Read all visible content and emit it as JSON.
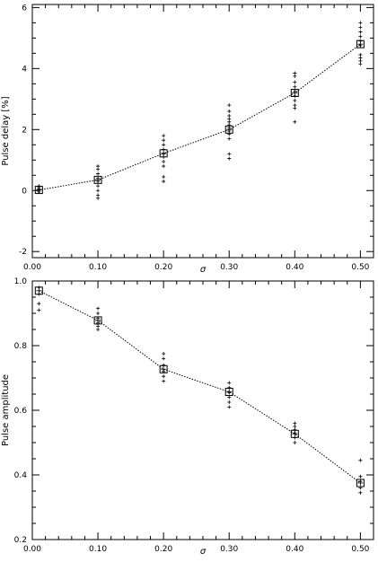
{
  "chart_data": [
    {
      "type": "scatter",
      "xlabel": "σ",
      "ylabel": "Pulse delay [%]",
      "xlim": [
        0.0,
        0.52
      ],
      "ylim": [
        -2.2,
        6.1
      ],
      "xticks": [
        0.0,
        0.1,
        0.2,
        0.3,
        0.4,
        0.5
      ],
      "xtick_labels": [
        "0.00",
        "0.10",
        "0.20",
        "0.30",
        "0.40",
        "0.50"
      ],
      "yticks": [
        -2,
        0,
        2,
        4,
        6
      ],
      "ytick_labels": [
        "-2",
        "0",
        "2",
        "4",
        "6"
      ],
      "grid": false,
      "series": [
        {
          "marker": "square",
          "line": "dotted",
          "x": [
            0.01,
            0.1,
            0.2,
            0.3,
            0.4,
            0.5
          ],
          "y": [
            0.02,
            0.35,
            1.22,
            2.0,
            3.2,
            4.8
          ]
        },
        {
          "marker": "plus",
          "x": [
            0.01,
            0.01,
            0.01,
            0.01,
            0.01,
            0.1,
            0.1,
            0.1,
            0.1,
            0.1,
            0.1,
            0.1,
            0.1,
            0.1,
            0.2,
            0.2,
            0.2,
            0.2,
            0.2,
            0.2,
            0.2,
            0.2,
            0.2,
            0.2,
            0.3,
            0.3,
            0.3,
            0.3,
            0.3,
            0.3,
            0.3,
            0.3,
            0.3,
            0.3,
            0.3,
            0.3,
            0.4,
            0.4,
            0.4,
            0.4,
            0.4,
            0.4,
            0.4,
            0.4,
            0.4,
            0.4,
            0.5,
            0.5,
            0.5,
            0.5,
            0.5,
            0.5,
            0.5,
            0.5,
            0.5,
            0.5
          ],
          "y": [
            -0.05,
            0.0,
            0.05,
            0.1,
            0.15,
            0.8,
            0.7,
            0.55,
            0.4,
            0.3,
            0.15,
            0.0,
            -0.15,
            -0.25,
            1.8,
            1.65,
            1.5,
            1.35,
            1.2,
            1.1,
            0.95,
            0.8,
            0.45,
            0.3,
            2.8,
            2.6,
            2.45,
            2.35,
            2.25,
            2.15,
            2.05,
            1.95,
            1.85,
            1.7,
            1.2,
            1.05,
            3.85,
            3.75,
            3.55,
            3.4,
            3.25,
            3.1,
            2.95,
            2.8,
            2.7,
            2.25,
            5.5,
            5.35,
            5.2,
            5.05,
            4.9,
            4.75,
            4.45,
            4.35,
            4.25,
            4.15
          ]
        }
      ]
    },
    {
      "type": "scatter",
      "xlabel": "σ",
      "ylabel": "Pulse amplitude",
      "xlim": [
        0.0,
        0.52
      ],
      "ylim": [
        0.2,
        1.0
      ],
      "xticks": [
        0.0,
        0.1,
        0.2,
        0.3,
        0.4,
        0.5
      ],
      "xtick_labels": [
        "0.00",
        "0.10",
        "0.20",
        "0.30",
        "0.40",
        "0.50"
      ],
      "yticks": [
        0.2,
        0.4,
        0.6,
        0.8,
        1.0
      ],
      "ytick_labels": [
        "0.2",
        "0.4",
        "0.6",
        "0.8",
        "1.0"
      ],
      "grid": false,
      "series": [
        {
          "marker": "square",
          "line": "dotted",
          "x": [
            0.01,
            0.1,
            0.2,
            0.3,
            0.4,
            0.5
          ],
          "y": [
            0.97,
            0.878,
            0.727,
            0.657,
            0.527,
            0.375
          ]
        },
        {
          "marker": "plus",
          "x": [
            0.01,
            0.01,
            0.01,
            0.01,
            0.1,
            0.1,
            0.1,
            0.1,
            0.1,
            0.1,
            0.2,
            0.2,
            0.2,
            0.2,
            0.2,
            0.2,
            0.3,
            0.3,
            0.3,
            0.3,
            0.3,
            0.3,
            0.4,
            0.4,
            0.4,
            0.4,
            0.4,
            0.4,
            0.5,
            0.5,
            0.5,
            0.5,
            0.5
          ],
          "y": [
            0.98,
            0.96,
            0.93,
            0.91,
            0.915,
            0.9,
            0.885,
            0.87,
            0.86,
            0.85,
            0.775,
            0.76,
            0.74,
            0.72,
            0.705,
            0.69,
            0.685,
            0.67,
            0.655,
            0.64,
            0.625,
            0.61,
            0.56,
            0.55,
            0.54,
            0.53,
            0.515,
            0.5,
            0.445,
            0.395,
            0.38,
            0.36,
            0.345
          ]
        }
      ]
    }
  ]
}
